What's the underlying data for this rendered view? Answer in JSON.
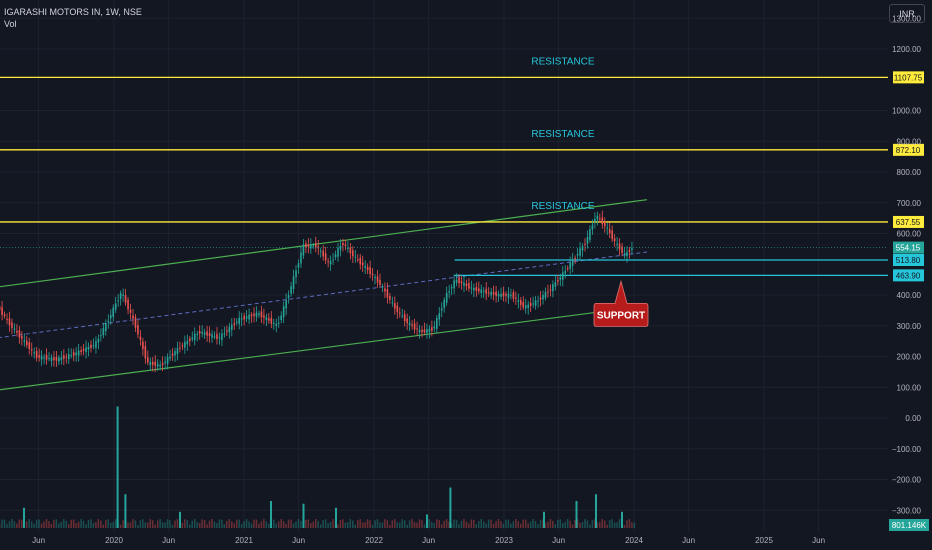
{
  "header": {
    "symbol_title": "IGARASHI MOTORS IN, 1W, NSE",
    "volume_label": "Vol"
  },
  "currency_button": "INR",
  "chart_data": {
    "type": "candlestick",
    "title": "IGARASHI MOTORS IN, 1W, NSE",
    "ylim": [
      -350,
      1340
    ],
    "y_ticks": [
      1300,
      1200,
      1000,
      900,
      800,
      700,
      600,
      400,
      300,
      200,
      100,
      0,
      -100,
      -200,
      -300
    ],
    "y_tick_labels": [
      "1300.00",
      "1200.00",
      "1000.00",
      "900.00",
      "800.00",
      "700.00",
      "600.00",
      "400.00",
      "300.00",
      "200.00",
      "100.00",
      "0.00",
      "−100.00",
      "−200.00",
      "−300.00"
    ],
    "x_ticks": [
      "Jun",
      "2020",
      "Jun",
      "2021",
      "Jun",
      "2022",
      "Jun",
      "2023",
      "Jun",
      "2024",
      "Jun",
      "2025",
      "Jun"
    ],
    "x_tick_dates": [
      2019.42,
      2020.0,
      2020.42,
      2021.0,
      2021.42,
      2022.0,
      2022.42,
      2023.0,
      2023.42,
      2024.0,
      2024.42,
      2025.0,
      2025.42
    ],
    "grid": true,
    "horizontal_levels": [
      {
        "value": 1107.75,
        "label": "1107.75",
        "color": "#ffeb3b",
        "annotation": "RESISTANCE"
      },
      {
        "value": 872.1,
        "label": "872.10",
        "color": "#ffeb3b",
        "annotation": "RESISTANCE"
      },
      {
        "value": 637.55,
        "label": "637.55",
        "color": "#ffeb3b",
        "annotation": "RESISTANCE"
      },
      {
        "value": 513.8,
        "label": "513.80",
        "color": "#26c6da",
        "annotation": ""
      },
      {
        "value": 463.9,
        "label": "463.90",
        "color": "#26c6da",
        "annotation": ""
      }
    ],
    "last_price": {
      "value": 554.15,
      "label": "554.15",
      "color": "#26a69a"
    },
    "volume_last": {
      "label": "801.146K",
      "color": "#26a69a"
    },
    "channel": {
      "upper": {
        "x": [
          2019.0,
          2024.1
        ],
        "y": [
          420,
          710
        ]
      },
      "lower": {
        "x": [
          2019.0,
          2024.1
        ],
        "y": [
          85,
          365
        ]
      },
      "mid": {
        "x": [
          2019.0,
          2024.1
        ],
        "y": [
          255,
          540
        ]
      }
    },
    "support_annotation": {
      "text": "SUPPORT",
      "x": 2023.9,
      "y": 463.9
    },
    "price_points": [
      [
        2019.0,
        410
      ],
      [
        2019.1,
        360
      ],
      [
        2019.2,
        300
      ],
      [
        2019.3,
        250
      ],
      [
        2019.4,
        200
      ],
      [
        2019.55,
        190
      ],
      [
        2019.7,
        210
      ],
      [
        2019.85,
        240
      ],
      [
        2019.95,
        320
      ],
      [
        2020.05,
        410
      ],
      [
        2020.15,
        310
      ],
      [
        2020.25,
        180
      ],
      [
        2020.35,
        170
      ],
      [
        2020.5,
        230
      ],
      [
        2020.65,
        280
      ],
      [
        2020.8,
        260
      ],
      [
        2020.95,
        320
      ],
      [
        2021.1,
        340
      ],
      [
        2021.25,
        300
      ],
      [
        2021.35,
        420
      ],
      [
        2021.45,
        560
      ],
      [
        2021.55,
        560
      ],
      [
        2021.65,
        500
      ],
      [
        2021.75,
        570
      ],
      [
        2021.85,
        520
      ],
      [
        2021.95,
        480
      ],
      [
        2022.05,
        430
      ],
      [
        2022.15,
        360
      ],
      [
        2022.25,
        310
      ],
      [
        2022.35,
        280
      ],
      [
        2022.45,
        290
      ],
      [
        2022.55,
        400
      ],
      [
        2022.62,
        450
      ],
      [
        2022.75,
        420
      ],
      [
        2022.85,
        410
      ],
      [
        2022.95,
        400
      ],
      [
        2023.05,
        400
      ],
      [
        2023.15,
        360
      ],
      [
        2023.25,
        380
      ],
      [
        2023.35,
        420
      ],
      [
        2023.45,
        470
      ],
      [
        2023.55,
        530
      ],
      [
        2023.62,
        570
      ],
      [
        2023.7,
        660
      ],
      [
        2023.78,
        620
      ],
      [
        2023.85,
        570
      ],
      [
        2023.92,
        530
      ],
      [
        2023.98,
        554
      ]
    ],
    "volume_levels": [
      [
        2019.05,
        0.3
      ],
      [
        2019.3,
        0.15
      ],
      [
        2020.02,
        0.9
      ],
      [
        2020.08,
        0.25
      ],
      [
        2020.5,
        0.12
      ],
      [
        2021.2,
        0.2
      ],
      [
        2021.45,
        0.18
      ],
      [
        2021.7,
        0.15
      ],
      [
        2022.4,
        0.1
      ],
      [
        2022.58,
        0.3
      ],
      [
        2023.3,
        0.12
      ],
      [
        2023.55,
        0.2
      ],
      [
        2023.7,
        0.25
      ],
      [
        2023.9,
        0.12
      ]
    ]
  }
}
